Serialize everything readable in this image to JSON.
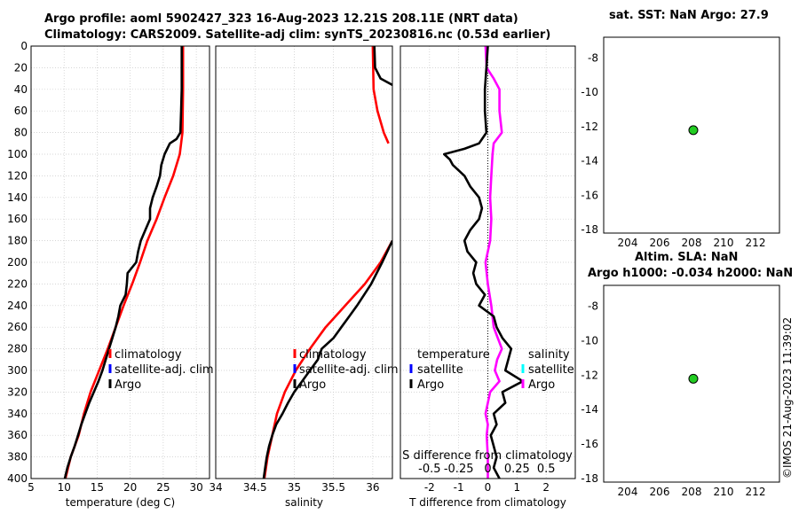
{
  "titles": {
    "line1": "Argo profile: aoml 5902427_323 16-Aug-2023 12.21S 208.11E (NRT data)",
    "line2": "Climatology: CARS2009. Satellite-adj clim: synTS_20230816.nc (0.53d earlier)",
    "sst": "sat. SST: NaN Argo: 27.9",
    "sla1": "Altim. SLA: NaN",
    "sla2": "Argo h1000: -0.034 h2000: NaN"
  },
  "stamp": "©IMOS 21-Aug-2023 11:39:02",
  "colors": {
    "argo": "#000000",
    "climatology": "#ff0000",
    "satellite": "#0000ff",
    "salinity_clim": "#ff00ff",
    "salinity_sat": "#00ffff",
    "marker": "#22cc22"
  },
  "chart_data": [
    {
      "type": "line",
      "name": "temperature",
      "xlabel": "temperature (deg C)",
      "ylabel": "",
      "xlim": [
        5,
        32
      ],
      "ylim": [
        0,
        400
      ],
      "y_reversed": true,
      "xticks": [
        "5",
        "10",
        "15",
        "20",
        "25",
        "30"
      ],
      "yticks": [
        "0",
        "20",
        "40",
        "60",
        "80",
        "100",
        "120",
        "140",
        "160",
        "180",
        "200",
        "220",
        "240",
        "260",
        "280",
        "300",
        "320",
        "340",
        "360",
        "380",
        "400"
      ],
      "legend": [
        "climatology",
        "satellite-adj. clim",
        "Argo"
      ],
      "series": [
        {
          "name": "climatology",
          "depth": [
            0,
            40,
            80,
            100,
            120,
            140,
            160,
            180,
            200,
            220,
            240,
            260,
            280,
            300,
            320,
            340,
            360,
            380,
            400
          ],
          "values": [
            28,
            28,
            27.9,
            27.5,
            26.5,
            25.2,
            24,
            22.6,
            21.5,
            20.3,
            19,
            17.8,
            16.6,
            15.3,
            14,
            13,
            12.2,
            11,
            10.2
          ]
        },
        {
          "name": "Argo",
          "depth": [
            0,
            20,
            40,
            60,
            80,
            86,
            90,
            100,
            110,
            120,
            130,
            140,
            150,
            160,
            170,
            180,
            190,
            200,
            210,
            220,
            230,
            240,
            250,
            260,
            270,
            280,
            290,
            300,
            310,
            320,
            330,
            340,
            350,
            360,
            370,
            380,
            390,
            400
          ],
          "values": [
            27.8,
            27.8,
            27.8,
            27.7,
            27.6,
            27,
            26,
            25.2,
            24.7,
            24.5,
            24,
            23.4,
            23,
            23,
            22.3,
            21.6,
            21.2,
            20.9,
            19.6,
            19.5,
            19.3,
            18.5,
            18.2,
            17.8,
            17.3,
            16.8,
            16.3,
            15.8,
            15.2,
            14.5,
            13.8,
            13.2,
            12.6,
            12.1,
            11.6,
            11,
            10.5,
            10.1
          ]
        }
      ]
    },
    {
      "type": "line",
      "name": "salinity",
      "xlabel": "salinity",
      "xlim": [
        34,
        36.25
      ],
      "ylim": [
        0,
        400
      ],
      "y_reversed": true,
      "xticks": [
        "34",
        "34.5",
        "35",
        "35.5",
        "36"
      ],
      "legend": [
        "climatology",
        "satellite-adj. clim",
        "Argo"
      ],
      "series": [
        {
          "name": "climatology",
          "depth": [
            0,
            40,
            60,
            80,
            90
          ],
          "values": [
            36.0,
            36.01,
            36.06,
            36.14,
            36.2
          ]
        },
        {
          "name": "climatology",
          "depth": [
            180,
            200,
            220,
            240,
            260,
            280,
            300,
            320,
            340,
            360,
            380,
            400
          ],
          "values": [
            36.25,
            36.1,
            35.9,
            35.65,
            35.4,
            35.2,
            35.02,
            34.88,
            34.78,
            34.72,
            34.66,
            34.62
          ]
        },
        {
          "name": "Argo",
          "depth": [
            0,
            20,
            30,
            36
          ],
          "values": [
            36.02,
            36.03,
            36.1,
            36.25
          ]
        },
        {
          "name": "Argo",
          "depth": [
            180,
            200,
            220,
            240,
            250,
            260,
            270,
            280,
            290,
            300,
            310,
            320,
            330,
            340,
            350,
            360,
            370,
            380,
            390,
            400
          ],
          "values": [
            36.25,
            36.12,
            35.98,
            35.8,
            35.7,
            35.6,
            35.5,
            35.35,
            35.3,
            35.2,
            35.1,
            35.0,
            34.92,
            34.85,
            34.77,
            34.72,
            34.68,
            34.65,
            34.63,
            34.61
          ]
        }
      ]
    },
    {
      "type": "line",
      "name": "differences",
      "xlabel": "T difference from climatology",
      "xlabel_top": "S difference from climatology",
      "xlim": [
        -3,
        3
      ],
      "ylim": [
        0,
        400
      ],
      "y_reversed": true,
      "xticks": [
        "-2",
        "-1",
        "0",
        "1",
        "2"
      ],
      "xticks_top": [
        "-0.5",
        "-0.25",
        "0",
        "0.25",
        "0.5"
      ],
      "legend_temperature": [
        "temperature",
        "satellite",
        "Argo"
      ],
      "legend_salinity": [
        "salinity",
        "satellite",
        "Argo"
      ],
      "series": [
        {
          "name": "T Argo minus climatology",
          "depth": [
            0,
            20,
            40,
            60,
            80,
            90,
            95,
            100,
            105,
            110,
            120,
            130,
            140,
            150,
            160,
            170,
            180,
            190,
            200,
            210,
            220,
            230,
            240,
            250,
            260,
            270,
            280,
            290,
            300,
            310,
            320,
            330,
            340,
            350,
            360,
            370,
            380,
            390,
            400
          ],
          "values": [
            0,
            -0.05,
            -0.1,
            -0.1,
            -0.05,
            -0.3,
            -0.8,
            -1.5,
            -1.3,
            -1.2,
            -0.8,
            -0.6,
            -0.3,
            -0.2,
            -0.3,
            -0.6,
            -0.8,
            -0.7,
            -0.4,
            -0.5,
            -0.4,
            -0.1,
            -0.3,
            0.2,
            0.3,
            0.5,
            0.8,
            0.7,
            0.6,
            1.2,
            0.5,
            0.6,
            0.2,
            0.3,
            0.1,
            0.2,
            0.3,
            0.2,
            0.4
          ]
        },
        {
          "name": "S Argo minus climatology",
          "depth": [
            0,
            20,
            30,
            40,
            60,
            80,
            90,
            100,
            120,
            140,
            160,
            180,
            200,
            220,
            240,
            260,
            280,
            290,
            300,
            310,
            320,
            330,
            340,
            350,
            360,
            380,
            400
          ],
          "values": [
            -0.02,
            -0.01,
            0.05,
            0.1,
            0.1,
            0.12,
            0.05,
            0.04,
            0.03,
            0.02,
            0.03,
            0.02,
            -0.02,
            0.0,
            0.03,
            0.05,
            0.12,
            0.08,
            0.06,
            0.1,
            0.02,
            0.0,
            -0.02,
            0.0,
            -0.01,
            0.0,
            0.0
          ]
        }
      ]
    },
    {
      "type": "scatter",
      "name": "sst-map",
      "xlim": [
        202.5,
        213.5
      ],
      "ylim": [
        -18.2,
        -6.8
      ],
      "xticks": [
        "204",
        "206",
        "208",
        "210",
        "212"
      ],
      "yticks": [
        "-8",
        "-10",
        "-12",
        "-14",
        "-16",
        "-18"
      ],
      "points": [
        {
          "x": 208.11,
          "y": -12.21
        }
      ]
    },
    {
      "type": "scatter",
      "name": "sla-map",
      "xlim": [
        202.5,
        213.5
      ],
      "ylim": [
        -18.2,
        -6.8
      ],
      "xticks": [
        "204",
        "206",
        "208",
        "210",
        "212"
      ],
      "yticks": [
        "-8",
        "-10",
        "-12",
        "-14",
        "-16",
        "-18"
      ],
      "points": [
        {
          "x": 208.11,
          "y": -12.21
        }
      ]
    }
  ]
}
